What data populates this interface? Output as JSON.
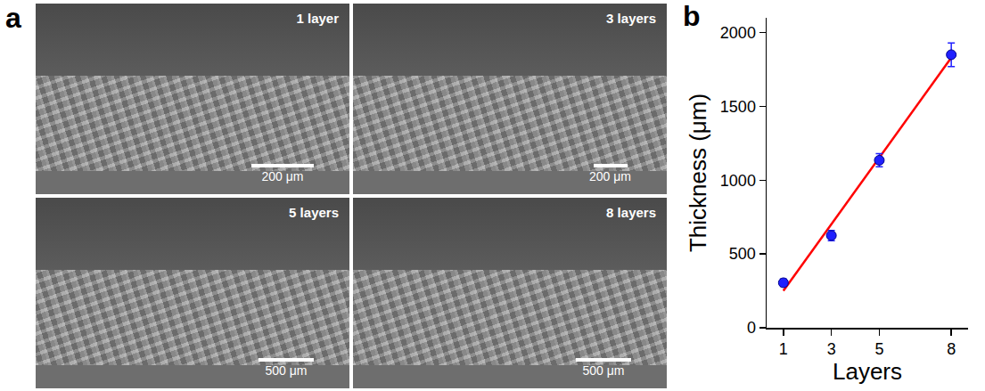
{
  "letters": [
    "a",
    "b"
  ],
  "micrographs": [
    {
      "label": "1 layer",
      "scale_bar": "200 μm"
    },
    {
      "label": "3 layers",
      "scale_bar": "200 μm"
    },
    {
      "label": "5 layers",
      "scale_bar": "500 μm"
    },
    {
      "label": "8 layers",
      "scale_bar": "500 μm"
    }
  ],
  "chart_data": {
    "type": "scatter",
    "x_label": "Layers",
    "y_label": "Thickness (μm)",
    "xlim": [
      0.3,
      8.7
    ],
    "xticks": [
      1,
      3,
      5,
      8
    ],
    "ylim": [
      0,
      2100
    ],
    "yticks": [
      0,
      500,
      1000,
      1500,
      2000
    ],
    "grid": false,
    "series": [
      {
        "type": "scatter",
        "color": "#2020ff",
        "marker": "circle",
        "x": [
          1,
          3,
          5,
          8
        ],
        "values": [
          305,
          625,
          1135,
          1850
        ],
        "errors": [
          25,
          35,
          45,
          80
        ]
      },
      {
        "type": "line",
        "color": "#ff0000",
        "line_style": "solid",
        "x": [
          1,
          8
        ],
        "values": [
          250,
          1830
        ]
      }
    ]
  }
}
